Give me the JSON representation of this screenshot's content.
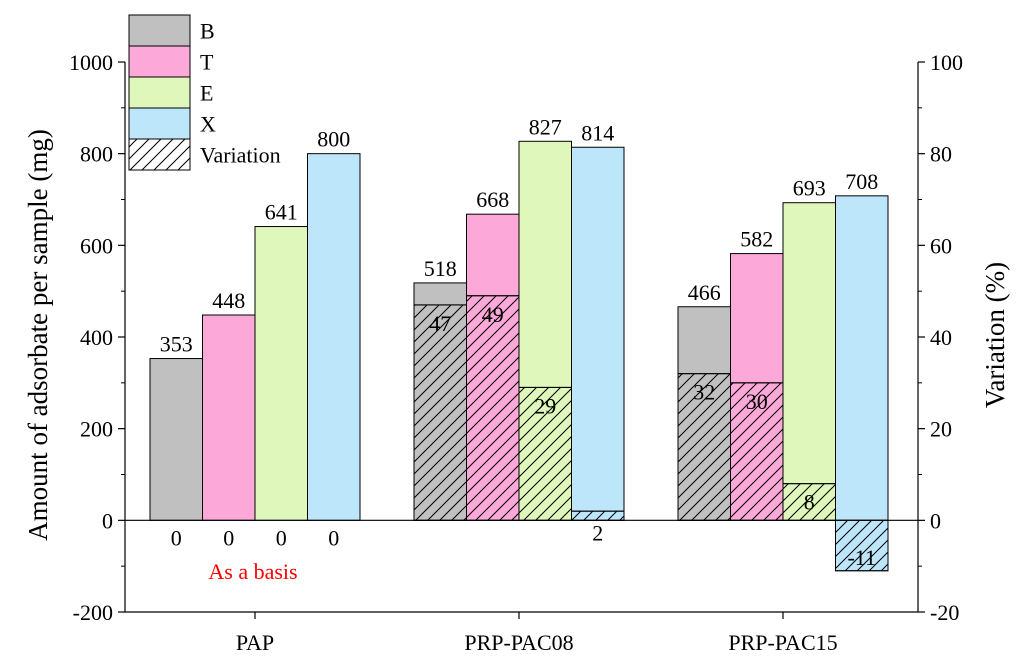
{
  "chart_data": {
    "type": "bar",
    "categories": [
      "PAP",
      "PRP-PAC08",
      "PRP-PAC15"
    ],
    "series": [
      {
        "name": "B",
        "values": [
          353,
          518,
          466
        ],
        "variation": [
          0,
          47,
          32
        ]
      },
      {
        "name": "T",
        "values": [
          448,
          668,
          582
        ],
        "variation": [
          0,
          49,
          30
        ]
      },
      {
        "name": "E",
        "values": [
          641,
          827,
          693
        ],
        "variation": [
          0,
          29,
          8
        ]
      },
      {
        "name": "X",
        "values": [
          800,
          814,
          708
        ],
        "variation": [
          0,
          2,
          -11
        ]
      }
    ],
    "variation_legend": "Variation",
    "ylabel": "Amount of adsorbate per sample (mg)",
    "ylabel_right": "Variation (%)",
    "ylim": [
      -200,
      1000
    ],
    "ylim_right": [
      -20,
      100
    ],
    "yticks": [
      "-200",
      "0",
      "200",
      "400",
      "600",
      "800",
      "1000"
    ],
    "yticks_right": [
      "-20",
      "0",
      "20",
      "40",
      "60",
      "80",
      "100"
    ],
    "annotation": "As a basis",
    "legend_position": "top-left",
    "grid": false
  },
  "colors": {
    "B": "#c0c0c0",
    "T": "#fca8d9",
    "E": "#e0f7bc",
    "X": "#bde6fb",
    "annotation": "#ff0000"
  }
}
